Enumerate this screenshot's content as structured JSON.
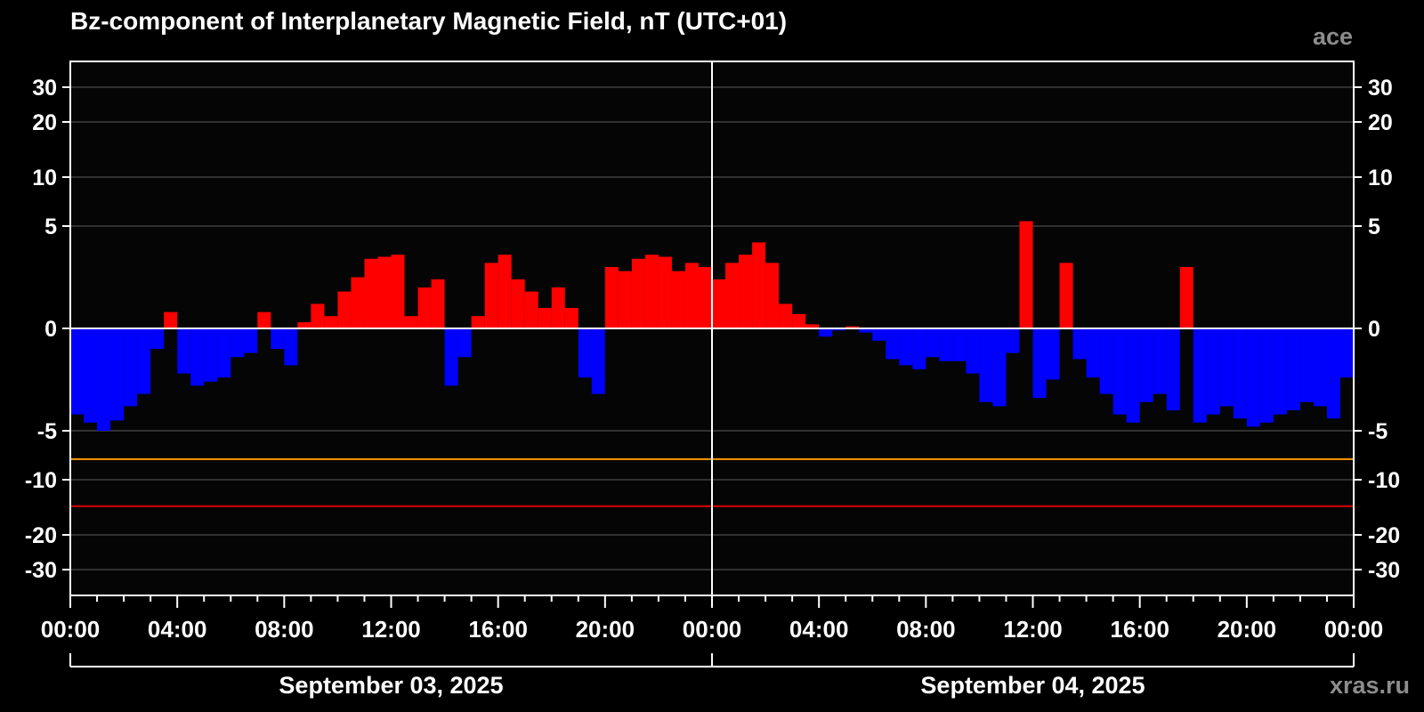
{
  "header": {
    "title": "Bz-component of Interplanetary Magnetic Field, nT (UTC+01)",
    "source": "ace",
    "site": "xras.ru"
  },
  "colors": {
    "background": "#000000",
    "positive": "#ff0000",
    "negative": "#0000ff",
    "grid": "#5a5a5a",
    "axis": "#ffffff",
    "warn_line": "#ff9900",
    "alert_line": "#dd0000"
  },
  "chart_data": {
    "type": "bar",
    "title": "Bz-component of Interplanetary Magnetic Field, nT (UTC+01)",
    "ylabel": "nT",
    "y_scale": "nonlinear (compressed beyond ±5)",
    "ylim": [
      -38,
      38
    ],
    "y_ticks": [
      30,
      20,
      10,
      5,
      0,
      -5,
      -10,
      -20,
      -30
    ],
    "y_tick_labels": [
      "30",
      "20",
      "10",
      "5",
      "0",
      "-5",
      "-10",
      "-20",
      "-30"
    ],
    "x_range_hours": [
      0,
      48
    ],
    "x_tick_labels": [
      "00:00",
      "04:00",
      "08:00",
      "12:00",
      "16:00",
      "20:00",
      "00:00",
      "04:00",
      "08:00",
      "12:00",
      "16:00",
      "20:00",
      "00:00"
    ],
    "minor_tick_hours": 1,
    "day_labels": [
      "September 03, 2025",
      "September 04, 2025"
    ],
    "threshold_lines": [
      {
        "value": -7.9,
        "color": "#ff9900"
      },
      {
        "value": -14.8,
        "color": "#dd0000"
      }
    ],
    "series": [
      {
        "name": "Bz",
        "x_unit": "hours since Sep 03 00:00 (UTC+01)",
        "x": [
          0.0,
          0.5,
          1.0,
          1.5,
          2.0,
          2.5,
          3.0,
          3.5,
          4.0,
          4.5,
          5.0,
          5.5,
          6.0,
          6.5,
          7.0,
          7.5,
          8.0,
          8.5,
          9.0,
          9.5,
          10.0,
          10.5,
          11.0,
          11.5,
          12.0,
          12.5,
          13.0,
          13.5,
          14.0,
          14.5,
          15.0,
          15.5,
          16.0,
          16.5,
          17.0,
          17.5,
          18.0,
          18.5,
          19.0,
          19.5,
          20.0,
          20.5,
          21.0,
          21.5,
          22.0,
          22.5,
          23.0,
          23.5,
          24.0,
          24.5,
          25.0,
          25.5,
          26.0,
          26.5,
          27.0,
          27.5,
          28.0,
          28.5,
          29.0,
          29.5,
          30.0,
          30.5,
          31.0,
          31.5,
          32.0,
          32.5,
          33.0,
          33.5,
          34.0,
          34.5,
          35.0,
          35.5,
          36.0,
          36.5,
          37.0,
          37.5,
          38.0,
          38.5,
          39.0,
          39.5,
          40.0,
          40.5,
          41.0,
          41.5,
          42.0,
          42.5,
          43.0,
          43.5,
          44.0,
          44.5,
          45.0,
          45.5,
          46.0,
          46.5,
          47.0,
          47.5
        ],
        "values": [
          -4.2,
          -4.6,
          -5.0,
          -4.5,
          -3.8,
          -3.2,
          -1.0,
          0.8,
          -2.2,
          -2.8,
          -2.6,
          -2.4,
          -1.4,
          -1.2,
          0.8,
          -1.0,
          -1.8,
          0.3,
          1.2,
          0.6,
          1.8,
          2.5,
          3.4,
          3.5,
          3.6,
          0.6,
          2.0,
          2.4,
          -2.8,
          -1.4,
          0.6,
          3.2,
          3.6,
          2.4,
          1.8,
          1.0,
          2.0,
          1.0,
          -2.4,
          -3.2,
          3.0,
          2.8,
          3.4,
          3.6,
          3.5,
          2.8,
          3.2,
          3.0,
          2.4,
          3.2,
          3.6,
          4.2,
          3.2,
          1.2,
          0.7,
          0.2,
          -0.4,
          -0.1,
          0.1,
          -0.2,
          -0.6,
          -1.5,
          -1.8,
          -2.0,
          -1.4,
          -1.6,
          -1.6,
          -2.2,
          -3.6,
          -3.8,
          -1.2,
          5.5,
          -3.4,
          -2.5,
          3.2,
          -1.5,
          -2.4,
          -3.2,
          -4.2,
          -4.6,
          -3.6,
          -3.2,
          -4.0,
          3.0,
          -4.6,
          -4.2,
          -3.8,
          -4.4,
          -4.8,
          -4.6,
          -4.2,
          -4.0,
          -3.6,
          -3.8,
          -4.4,
          -2.4
        ]
      }
    ]
  }
}
